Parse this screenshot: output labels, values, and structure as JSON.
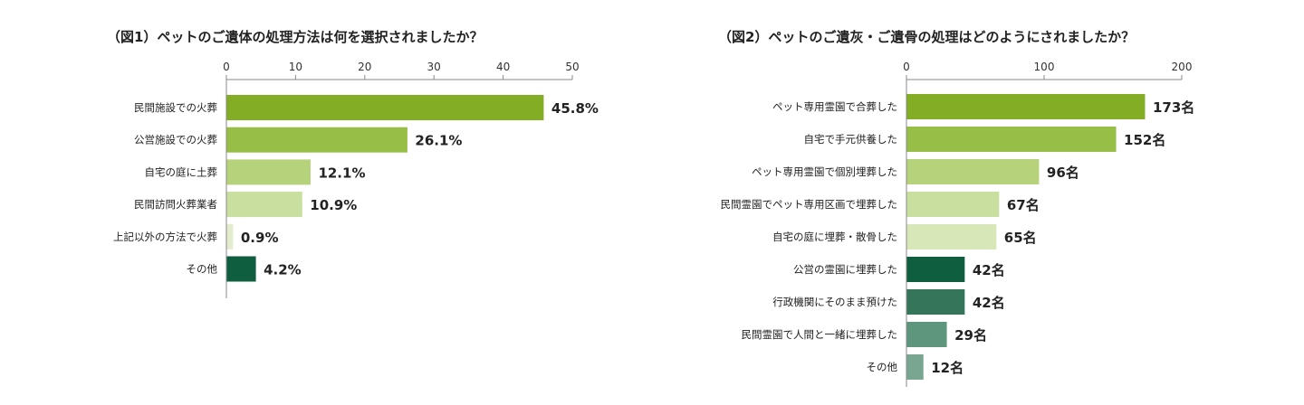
{
  "chart_data": [
    {
      "type": "bar",
      "orientation": "horizontal",
      "title": "（図1）ペットのご遺体の処理方法は何を選択されましたか？",
      "xlim": [
        0,
        50
      ],
      "ticks": [
        "0",
        "10",
        "20",
        "30",
        "40",
        "50"
      ],
      "tick_values": [
        0,
        10,
        20,
        30,
        40,
        50
      ],
      "categories": [
        "民間施設での火葬",
        "公営施設での火葬",
        "自宅の庭に土葬",
        "民間訪問火葬業者",
        "上記以外の方法で火葬",
        "その他"
      ],
      "values": [
        45.8,
        26.1,
        12.1,
        10.9,
        0.9,
        4.2
      ],
      "value_labels": [
        "45.8%",
        "26.1%",
        "12.1%",
        "10.9%",
        "0.9%",
        "4.2%"
      ],
      "colors": [
        "#82ad25",
        "#97bf47",
        "#b6d27a",
        "#c8df9f",
        "#e3eccd",
        "#0e5e3f"
      ],
      "grid": false,
      "legend": "none"
    },
    {
      "type": "bar",
      "orientation": "horizontal",
      "title": "（図2）ペットのご遺灰・ご遺骨の処理はどのようにされましたか？",
      "xlim": [
        0,
        200
      ],
      "ticks": [
        "0",
        "100",
        "200"
      ],
      "tick_values": [
        0,
        100,
        200
      ],
      "categories": [
        "ペット専用霊園で合葬した",
        "自宅で手元供養した",
        "ペット専用霊園で個別埋葬した",
        "民間霊園でペット専用区画で埋葬した",
        "自宅の庭に埋葬・散骨した",
        "公営の霊園に埋葬した",
        "行政機関にそのまま預けた",
        "民間霊園で人間と一緒に埋葬した",
        "その他"
      ],
      "values": [
        173,
        152,
        96,
        67,
        65,
        42,
        42,
        29,
        12
      ],
      "value_labels": [
        "173名",
        "152名",
        "96名",
        "67名",
        "65名",
        "42名",
        "42名",
        "29名",
        "12名"
      ],
      "colors": [
        "#82ad25",
        "#97bf47",
        "#b6d27a",
        "#c8df9f",
        "#d7e7b8",
        "#0e5e3f",
        "#357559",
        "#5e957d",
        "#78a690"
      ],
      "grid": false,
      "legend": "none"
    }
  ]
}
